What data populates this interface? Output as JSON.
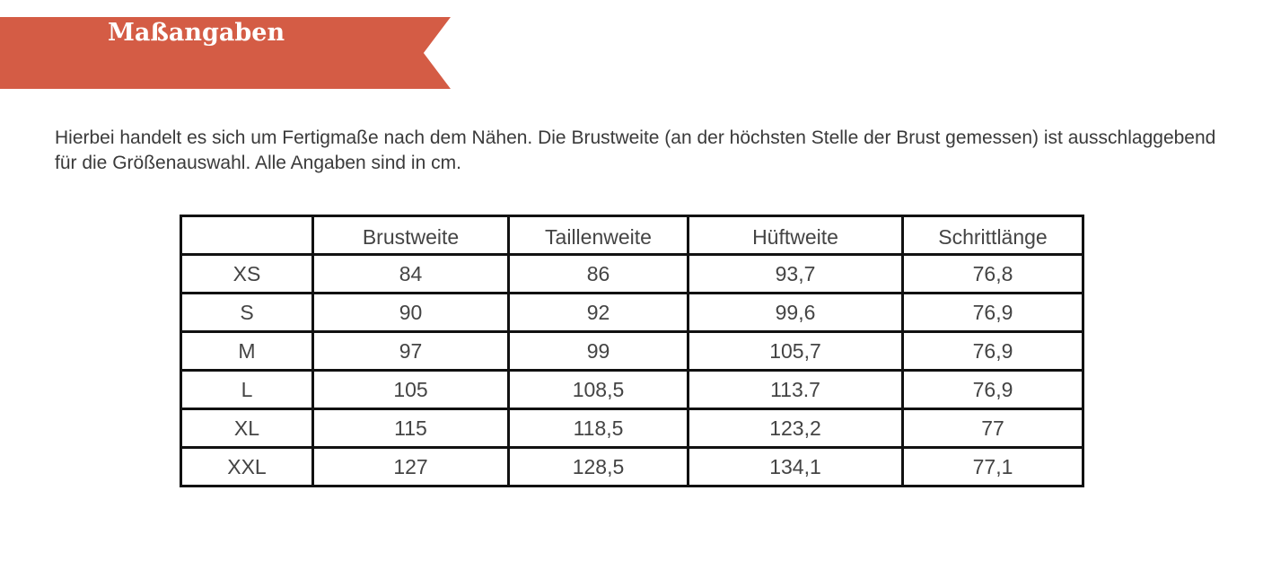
{
  "header": {
    "title": "Maßangaben"
  },
  "intro_text": "Hierbei handelt es sich um Fertigmaße nach dem Nähen. Die Brustweite (an der höchsten Stelle der Brust gemessen) ist ausschlaggebend für die Größenauswahl. Alle Angaben sind in cm.",
  "table": {
    "columns": [
      "",
      "Brustweite",
      "Taillenweite",
      "Hüftweite",
      "Schrittlänge"
    ],
    "rows": [
      [
        "XS",
        "84",
        "86",
        "93,7",
        "76,8"
      ],
      [
        "S",
        "90",
        "92",
        "99,6",
        "76,9"
      ],
      [
        "M",
        "97",
        "99",
        "105,7",
        "76,9"
      ],
      [
        "L",
        "105",
        "108,5",
        "113.7",
        "76,9"
      ],
      [
        "XL",
        "115",
        "118,5",
        "123,2",
        "77"
      ],
      [
        "XXL",
        "127",
        "128,5",
        "134,1",
        "77,1"
      ]
    ]
  },
  "colors": {
    "banner": "#d45c45",
    "banner_text": "#ffffff",
    "table_border": "#111111"
  }
}
